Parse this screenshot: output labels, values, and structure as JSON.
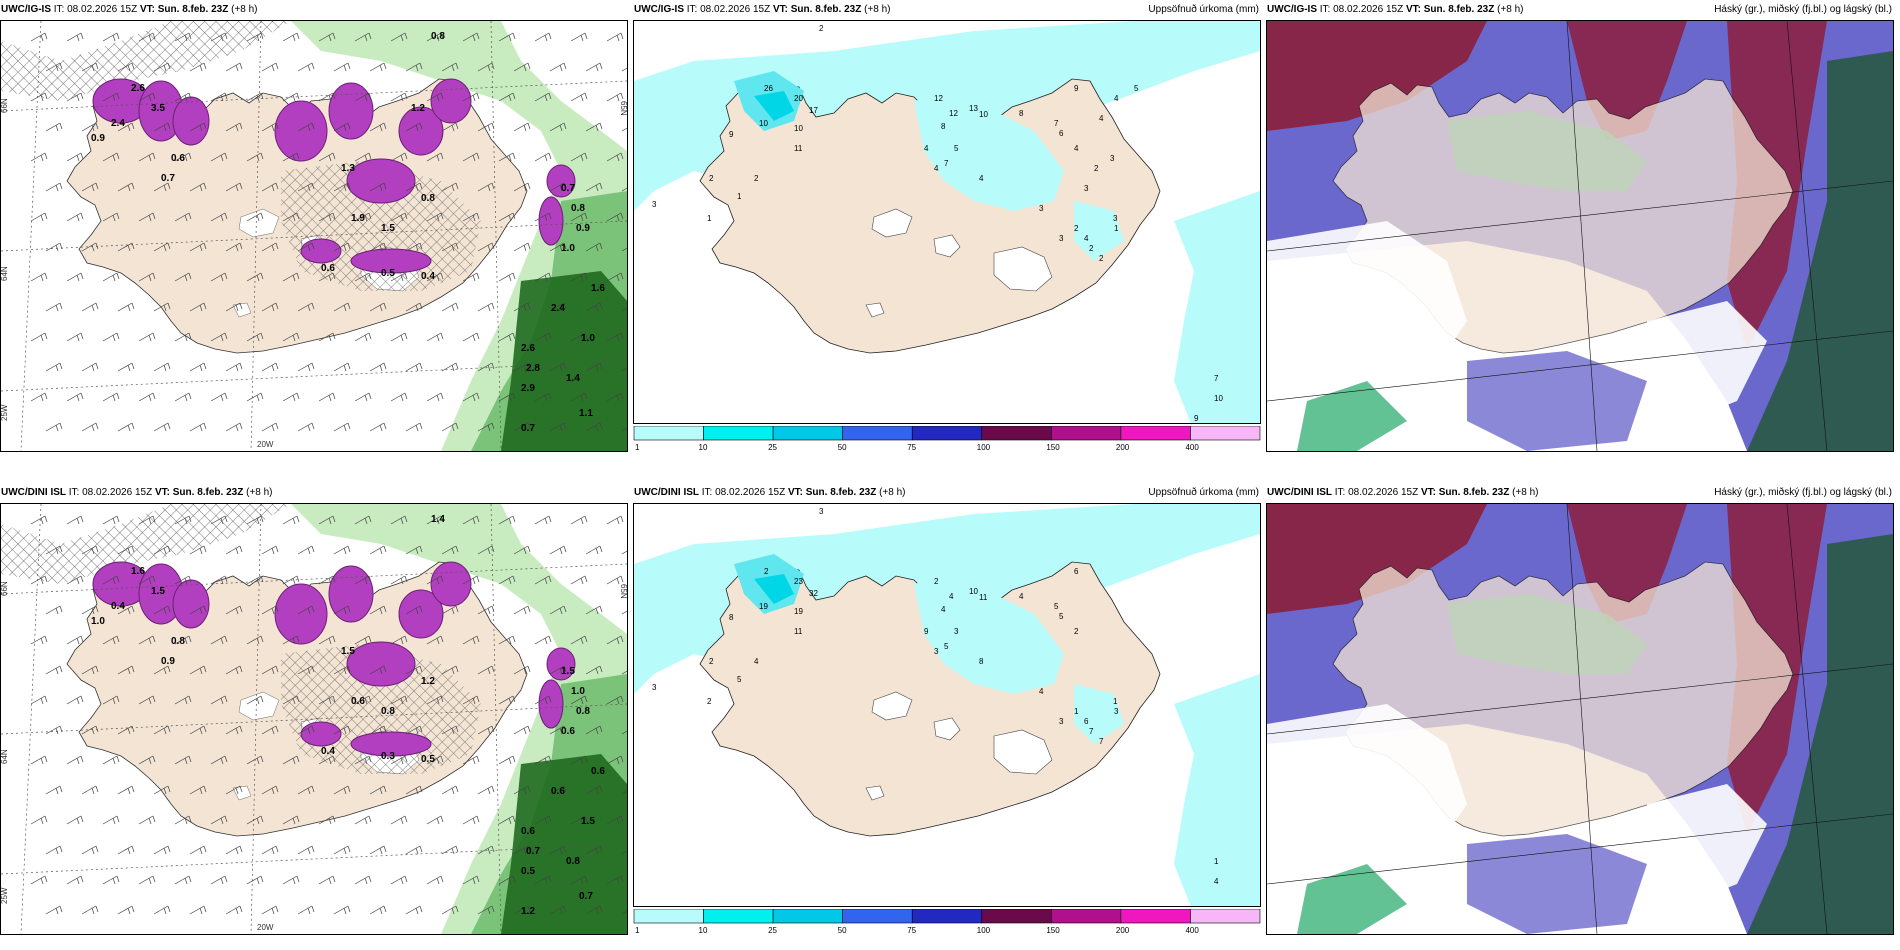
{
  "panels": [
    {
      "id": "p1",
      "type": "wind-cloud",
      "header": {
        "model": "UWC/IG-IS",
        "it_label": "IT:",
        "it_value": "08.02.2026 15Z",
        "vt_label": "VT:",
        "vt_value": "Sun. 8.feb. 23Z",
        "offset": "(+8 h)",
        "right": ""
      },
      "grid_labels": [
        "66N",
        "65N",
        "64N",
        "25W",
        "20W"
      ],
      "values": [
        "0.8",
        "2.6",
        "3.5",
        "2.4",
        "0.9",
        "0.6",
        "0.7",
        "1.3",
        "1.5",
        "1.9",
        "0.8",
        "0.6",
        "0.5",
        "0.4",
        "0.7",
        "0.8",
        "0.9",
        "1.0",
        "2.6",
        "2.8",
        "2.9",
        "1.4",
        "1.1",
        "0.7",
        "2.4",
        "1.0",
        "1.6",
        "1.2"
      ]
    },
    {
      "id": "p2",
      "type": "precip",
      "header": {
        "model": "UWC/IG-IS",
        "it_label": "IT:",
        "it_value": "08.02.2026 15Z",
        "vt_label": "VT:",
        "vt_value": "Sun. 8.feb. 23Z",
        "offset": "(+8 h)",
        "right": "Uppsöfnuð úrkoma (mm)"
      },
      "values": [
        "2",
        "26",
        "20",
        "17",
        "10",
        "10",
        "11",
        "9",
        "2",
        "1",
        "3",
        "1",
        "2",
        "12",
        "12",
        "8",
        "13",
        "10",
        "4",
        "4",
        "5",
        "7",
        "4",
        "8",
        "9",
        "7",
        "6",
        "4",
        "3",
        "3",
        "2",
        "4",
        "2",
        "2",
        "3",
        "1",
        "7",
        "10",
        "9",
        "3",
        "3",
        "2",
        "4",
        "4",
        "5"
      ]
    },
    {
      "id": "p3",
      "type": "cloud-cover",
      "header": {
        "model": "UWC/IG-IS",
        "it_label": "IT:",
        "it_value": "08.02.2026 15Z",
        "vt_label": "VT:",
        "vt_value": "Sun. 8.feb. 23Z",
        "offset": "(+8 h)",
        "right": "Háský (gr.), miðský (fj.bl.) og lágský (bl.)"
      }
    },
    {
      "id": "p4",
      "type": "wind-cloud",
      "header": {
        "model": "UWC/DINI ISL",
        "it_label": "IT:",
        "it_value": "08.02.2026 15Z",
        "vt_label": "VT:",
        "vt_value": "Sun. 8.feb. 23Z",
        "offset": "(+8 h)",
        "right": ""
      },
      "grid_labels": [
        "66N",
        "65N",
        "64N",
        "25W",
        "20W"
      ],
      "values": [
        "1.4",
        "1.6",
        "1.5",
        "0.4",
        "1.0",
        "0.8",
        "0.9",
        "1.5",
        "0.8",
        "0.6",
        "1.2",
        "0.4",
        "0.3",
        "0.5",
        "1.5",
        "1.0",
        "0.8",
        "0.6",
        "0.6",
        "0.7",
        "0.5",
        "0.8",
        "0.7",
        "1.2",
        "0.6",
        "1.5",
        "0.6"
      ]
    },
    {
      "id": "p5",
      "type": "precip",
      "header": {
        "model": "UWC/DINI ISL",
        "it_label": "IT:",
        "it_value": "08.02.2026 15Z",
        "vt_label": "VT:",
        "vt_value": "Sun. 8.feb. 23Z",
        "offset": "(+8 h)",
        "right": "Uppsöfnuð úrkoma (mm)"
      },
      "values": [
        "3",
        "2",
        "23",
        "32",
        "19",
        "19",
        "11",
        "8",
        "2",
        "2",
        "3",
        "5",
        "4",
        "2",
        "4",
        "4",
        "10",
        "11",
        "9",
        "3",
        "3",
        "5",
        "8",
        "4",
        "6",
        "5",
        "5",
        "2",
        "4",
        "3",
        "1",
        "6",
        "7",
        "7",
        "1",
        "3",
        "1",
        "4"
      ]
    },
    {
      "id": "p6",
      "type": "cloud-cover",
      "header": {
        "model": "UWC/DINI ISL",
        "it_label": "IT:",
        "it_value": "08.02.2026 15Z",
        "vt_label": "VT:",
        "vt_value": "Sun. 8.feb. 23Z",
        "offset": "(+8 h)",
        "right": "Háský (gr.), miðský (fj.bl.) og lágský (bl.)"
      }
    }
  ],
  "colorbar": {
    "ticks": [
      "1",
      "10",
      "25",
      "50",
      "75",
      "100",
      "150",
      "200",
      "400"
    ],
    "colors": [
      "#b7fcfb",
      "#00f0f0",
      "#00c8e6",
      "#3364f0",
      "#2228c0",
      "#6a0a4a",
      "#b0108c",
      "#f016c0",
      "#f7b6f5"
    ]
  },
  "colors": {
    "land": "#f3e4d4",
    "precip_light": "#b7fcfb",
    "cloud_high_green": "#1fa866",
    "cloud_mid_blue": "#5a56c8",
    "cloud_low_red": "#8c1f3c",
    "wind_green_light": "#c8ecc0",
    "wind_green_dark": "#1f6a1f",
    "magenta": "#b23fbf"
  }
}
